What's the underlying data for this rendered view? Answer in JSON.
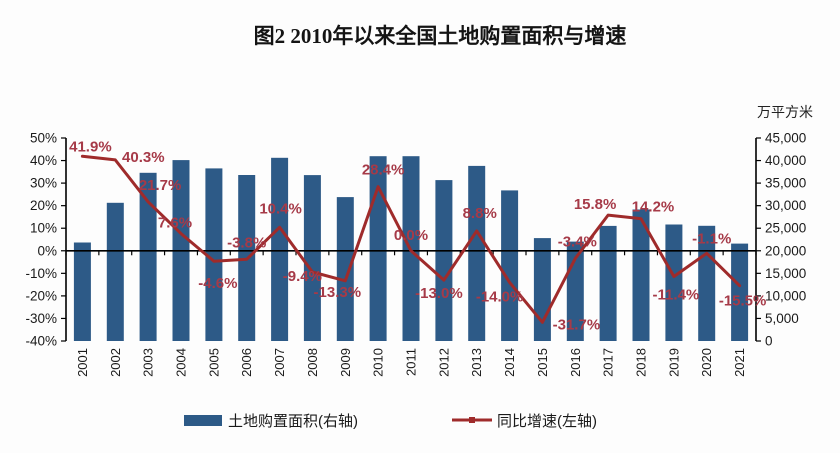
{
  "title": "图2  2010年以来全国土地购置面积与增速",
  "right_axis_unit": "万平方米",
  "legend": {
    "bar_label": "土地购置面积(右轴)",
    "line_label": "同比增速(左轴)"
  },
  "colors": {
    "bar": "#2d5a87",
    "line": "#9f2b2b",
    "data_label": "#a63a48",
    "axis": "#000000"
  },
  "chart_data": {
    "type": "bar",
    "subtype": "bar-line-combo",
    "title": "图2 2010年以来全国土地购置面积与增速",
    "categories": [
      "2001",
      "2002",
      "2003",
      "2004",
      "2005",
      "2006",
      "2007",
      "2008",
      "2009",
      "2010",
      "2011",
      "2012",
      "2013",
      "2014",
      "2015",
      "2016",
      "2017",
      "2018",
      "2019",
      "2020",
      "2021"
    ],
    "series": [
      {
        "name": "土地购置面积(右轴)",
        "type": "bar",
        "axis": "right",
        "unit": "万平方米",
        "values": [
          21840,
          30638,
          37286,
          40109,
          38254,
          36791,
          40609,
          36785,
          31906,
          40970,
          40973,
          35667,
          38814,
          33383,
          22811,
          22025,
          25508,
          29142,
          25822,
          25536,
          21590
        ]
      },
      {
        "name": "同比增速(左轴)",
        "type": "line",
        "axis": "left",
        "unit": "%",
        "values": [
          41.9,
          40.3,
          21.7,
          7.6,
          -4.6,
          -3.8,
          10.4,
          -9.4,
          -13.3,
          28.4,
          0.0,
          -13.0,
          8.8,
          -14.0,
          -31.7,
          -3.4,
          15.8,
          14.2,
          -11.4,
          -1.1,
          -15.5
        ],
        "data_labels": [
          "41.9%",
          "40.3%",
          "21.7%",
          "7.6%",
          "-4.6%",
          "-3.8%",
          "10.4%",
          "-9.4%",
          "-13.3%",
          "28.4%",
          "0.0%",
          "-13.0%",
          "8.8%",
          "-14.0%",
          "-31.7%",
          "-3.4%",
          "15.8%",
          "14.2%",
          "-11.4%",
          "-1.1%",
          "-15.5%"
        ],
        "label_offsets": [
          [
            8,
            -5
          ],
          [
            28,
            2
          ],
          [
            12,
            -12
          ],
          [
            -6,
            -6
          ],
          [
            4,
            27
          ],
          [
            0,
            -12
          ],
          [
            1,
            -14
          ],
          [
            -10,
            9
          ],
          [
            -8,
            16
          ],
          [
            5,
            -12
          ],
          [
            0,
            -11
          ],
          [
            -5,
            18
          ],
          [
            3,
            -13
          ],
          [
            -10,
            19
          ],
          [
            34,
            7
          ],
          [
            2,
            -12
          ],
          [
            -13,
            -6
          ],
          [
            12,
            -7
          ],
          [
            2,
            23
          ],
          [
            5,
            -10
          ],
          [
            3,
            20
          ]
        ]
      }
    ],
    "left_axis": {
      "min": -40,
      "max": 50,
      "step": 10,
      "tick_labels": [
        "50%",
        "40%",
        "30%",
        "20%",
        "10%",
        "0%",
        "-10%",
        "-20%",
        "-30%",
        "-40%"
      ]
    },
    "right_axis": {
      "min": 0,
      "max": 45000,
      "step": 5000,
      "tick_labels": [
        "45,000",
        "40,000",
        "35,000",
        "30,000",
        "25,000",
        "20,000",
        "15,000",
        "10,000",
        "5,000",
        "0"
      ],
      "unit": "万平方米"
    },
    "grid": false,
    "legend_position": "bottom"
  }
}
